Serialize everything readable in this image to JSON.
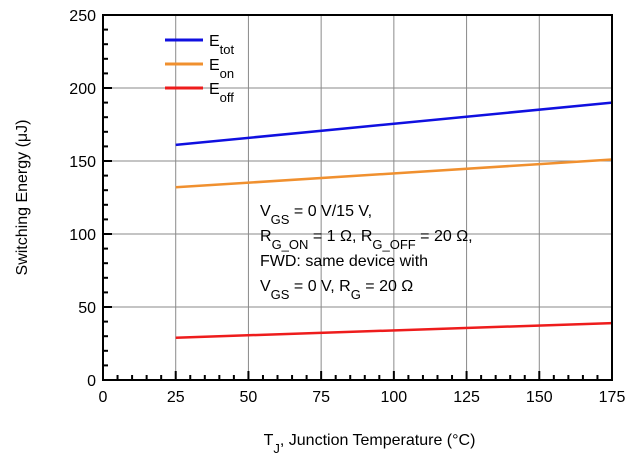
{
  "chart_data": {
    "type": "line",
    "title": "",
    "xlabel": "T_J, Junction Temperature (°C)",
    "xlabel_parts": {
      "main": "T",
      "sub": "J",
      "rest": ", Junction Temperature (°C)"
    },
    "ylabel": "Switching Energy (μJ)",
    "xlim": [
      0,
      175
    ],
    "ylim": [
      0,
      250
    ],
    "xticks": [
      0,
      25,
      50,
      75,
      100,
      125,
      150,
      175
    ],
    "yticks": [
      0,
      50,
      100,
      150,
      200,
      250
    ],
    "grid": true,
    "legend_position": "top-left",
    "series": [
      {
        "name": "E_tot",
        "label_main": "E",
        "label_sub": "tot",
        "color": "#1010e0",
        "x": [
          25,
          175
        ],
        "y": [
          161,
          190
        ]
      },
      {
        "name": "E_on",
        "label_main": "E",
        "label_sub": "on",
        "color": "#f0902f",
        "x": [
          25,
          175
        ],
        "y": [
          132,
          151
        ]
      },
      {
        "name": "E_off",
        "label_main": "E",
        "label_sub": "off",
        "color": "#ee1c1c",
        "x": [
          25,
          175
        ],
        "y": [
          29,
          39
        ]
      }
    ],
    "annotation": [
      [
        {
          "t": "V"
        },
        {
          "t": "GS",
          "sub": true
        },
        {
          "t": " = 0 V/15 V,"
        }
      ],
      [
        {
          "t": "R"
        },
        {
          "t": "G_ON",
          "sub": true
        },
        {
          "t": " = 1 Ω, R"
        },
        {
          "t": "G_OFF",
          "sub": true
        },
        {
          "t": " = 20 Ω,"
        }
      ],
      [
        {
          "t": "FWD: same device with"
        }
      ],
      [
        {
          "t": "V"
        },
        {
          "t": "GS",
          "sub": true
        },
        {
          "t": " = 0 V, R"
        },
        {
          "t": "G",
          "sub": true
        },
        {
          "t": " = 20 Ω"
        }
      ]
    ]
  }
}
